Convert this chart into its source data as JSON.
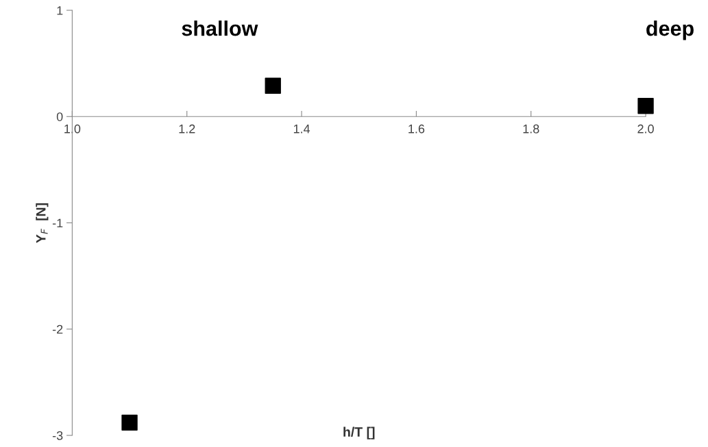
{
  "chart_data": {
    "type": "scatter",
    "xlabel": "h/T []",
    "ylabel": "Y$_{F}$  [N]",
    "x": [
      1.1,
      1.35,
      2.0
    ],
    "series": [
      {
        "color": "#000000",
        "values": [
          -2.88,
          0.29,
          0.1
        ]
      }
    ],
    "marker": "square",
    "xlim": [
      1.0,
      2.0
    ],
    "xticks": [
      {
        "value": 1.0,
        "label": "1.0"
      },
      1.2,
      1.4,
      1.6,
      1.8,
      {
        "value": 2.0,
        "label": "2.0"
      }
    ],
    "ylim": [
      -3,
      1
    ],
    "yticks": [
      -3,
      -2,
      -1,
      0,
      1
    ],
    "annotations": [
      "shallow",
      "deep"
    ],
    "grid": false,
    "legend": false
  }
}
